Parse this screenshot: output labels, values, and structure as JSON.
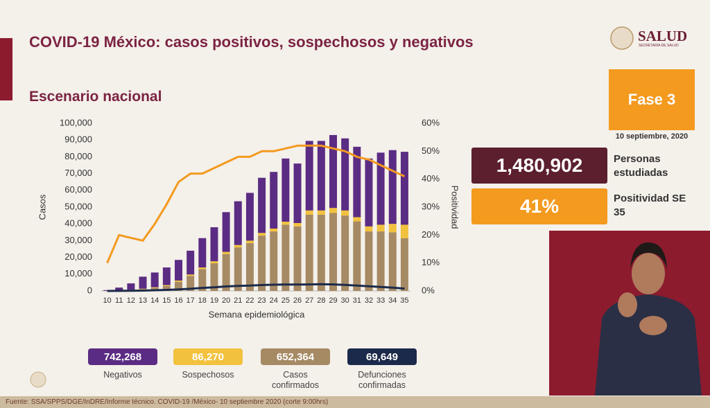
{
  "header": {
    "title": "COVID-19 México: casos positivos, sospechosos y negativos",
    "subtitle": "Escenario nacional",
    "logo": "SALUD",
    "logo_sub": "SECRETARÍA DE SALUD"
  },
  "phase": {
    "label": "Fase 3",
    "date": "10 septiembre, 2020"
  },
  "stats": [
    {
      "value": "1,480,902",
      "label": "Personas estudiadas"
    },
    {
      "value": "41%",
      "label": "Positividad SE 35"
    }
  ],
  "chart_data": {
    "type": "bar",
    "stacked": true,
    "grid": false,
    "x_label": "Semana epidemiológica",
    "y_label": "Casos",
    "y2_label": "Positividad",
    "categories": [
      "10",
      "11",
      "12",
      "13",
      "14",
      "15",
      "16",
      "17",
      "18",
      "19",
      "20",
      "21",
      "22",
      "23",
      "24",
      "25",
      "26",
      "27",
      "28",
      "29",
      "30",
      "31",
      "32",
      "33",
      "34",
      "35"
    ],
    "series": [
      {
        "name": "Negativos",
        "total": "742,268",
        "color": "#5b2c83",
        "values": [
          400,
          1700,
          3800,
          7200,
          8800,
          10500,
          12300,
          14200,
          17500,
          20300,
          23700,
          26100,
          28500,
          32900,
          33800,
          37700,
          35500,
          41500,
          41500,
          43500,
          43000,
          42000,
          40500,
          43000,
          44000,
          43500
        ]
      },
      {
        "name": "Sospechosos",
        "total": "86,270",
        "color": "#f2c23e",
        "values": [
          50,
          100,
          200,
          300,
          400,
          500,
          700,
          800,
          1000,
          1200,
          1300,
          1400,
          1500,
          1600,
          1700,
          1800,
          2000,
          2500,
          2500,
          3000,
          3000,
          2500,
          3000,
          4000,
          5000,
          8000
        ]
      },
      {
        "name": "Casos confirmados",
        "total": "652,364",
        "color": "#a68a64",
        "values": [
          50,
          200,
          500,
          1000,
          1800,
          3000,
          5500,
          9000,
          13000,
          16500,
          22000,
          26000,
          28500,
          33000,
          35500,
          39500,
          38500,
          45500,
          45500,
          46500,
          45000,
          41500,
          35500,
          35500,
          35000,
          31500
        ]
      },
      {
        "name": "Defunciones confirmadas",
        "total": "69,649",
        "color": "#1b2a4a",
        "type": "line",
        "values": [
          0,
          50,
          100,
          200,
          400,
          600,
          900,
          1300,
          1800,
          2200,
          2700,
          3000,
          3200,
          3500,
          3700,
          3800,
          3800,
          3900,
          4000,
          3900,
          3600,
          3200,
          2800,
          2400,
          2000,
          1400
        ]
      },
      {
        "color": "#f39a1f",
        "type": "line",
        "axis": "y2",
        "values": [
          10,
          20,
          19,
          18,
          24,
          31,
          39,
          42,
          42,
          44,
          46,
          48,
          48,
          50,
          50,
          51,
          52,
          52,
          52,
          51,
          50,
          48,
          47,
          45,
          43,
          41
        ]
      }
    ],
    "ylim": [
      0,
      100000
    ],
    "yticks": [
      0,
      {
        "value": 10000,
        "label": "10,000"
      },
      {
        "value": 20000,
        "label": "20,000"
      },
      {
        "value": 30000,
        "label": "30,000"
      },
      {
        "value": 40000,
        "label": "40,000"
      },
      {
        "value": 50000,
        "label": "50,000"
      },
      {
        "value": 60000,
        "label": "60,000"
      },
      {
        "value": 70000,
        "label": "70,000"
      },
      {
        "value": 80000,
        "label": "80,000"
      },
      {
        "value": 90000,
        "label": "90,000"
      },
      {
        "value": 100000,
        "label": "100,000"
      }
    ],
    "y2lim": [
      0,
      60
    ],
    "y2ticks": [
      {
        "value": 0,
        "label": "0%"
      },
      {
        "value": 10,
        "label": "10%"
      },
      {
        "value": 20,
        "label": "20%"
      },
      {
        "value": 30,
        "label": "30%"
      },
      {
        "value": 40,
        "label": "40%"
      },
      {
        "value": 50,
        "label": "50%"
      },
      {
        "value": 60,
        "label": "60%"
      }
    ]
  },
  "footer": "Fuente: SSA/SPPS/DGE/InDRE/Informe técnico. COVID-19 /México- 10 septiembre 2020 (corte 9:00hrs)"
}
